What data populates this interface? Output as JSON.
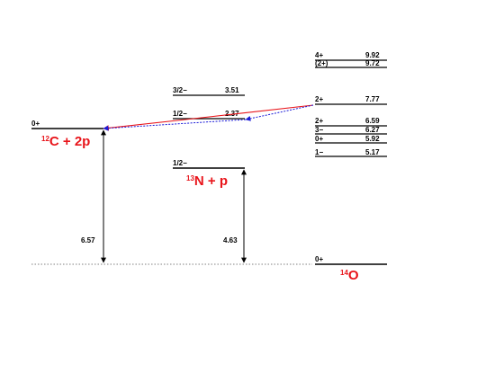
{
  "colors": {
    "red": "#e8141a",
    "blue": "#1a1ad8",
    "black": "#000000"
  },
  "c12": {
    "level_spin": "0+",
    "label_mass": "12",
    "label_text": "C + 2p",
    "gap": "6.57"
  },
  "n13": {
    "level_spin": "1/2−",
    "label_mass": "13",
    "label_text": "N + p",
    "gap": "4.63",
    "excited": [
      {
        "spin": "1/2−",
        "energy": "2.37"
      },
      {
        "spin": "3/2−",
        "energy": "3.51"
      }
    ]
  },
  "o14": {
    "label_mass": "14",
    "label_text": "O",
    "ground_spin": "0+",
    "levels": [
      {
        "spin": "4+",
        "energy": "9.92"
      },
      {
        "spin": "(2+)",
        "energy": "9.72"
      },
      {
        "spin": "2+",
        "energy": "7.77"
      },
      {
        "spin": "2+",
        "energy": "6.59"
      },
      {
        "spin": "3−",
        "energy": "6.27"
      },
      {
        "spin": "0+",
        "energy": "5.92"
      },
      {
        "spin": "1−",
        "energy": "5.17"
      }
    ]
  }
}
